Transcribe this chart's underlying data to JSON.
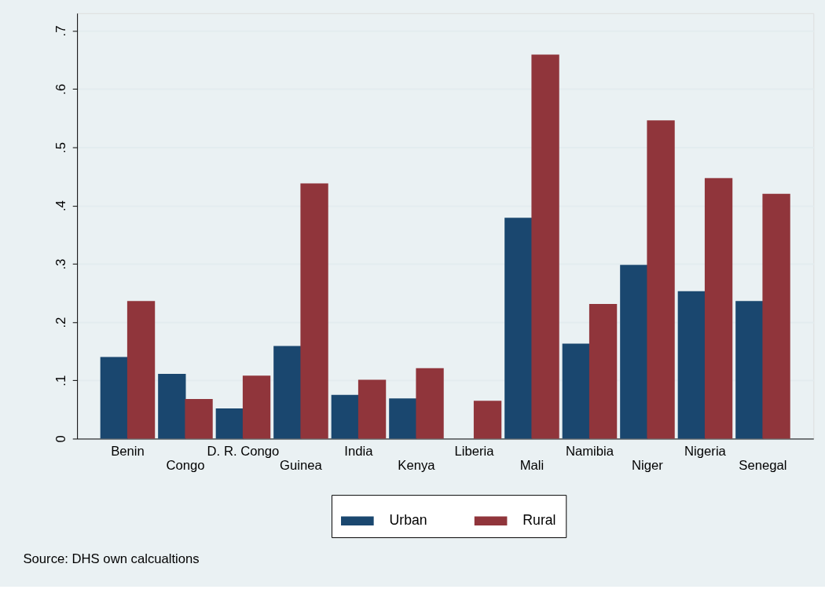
{
  "chart_data": {
    "type": "bar",
    "categories": [
      "Benin",
      "Congo",
      "D. R. Congo",
      "Guinea",
      "India",
      "Kenya",
      "Liberia",
      "Mali",
      "Namibia",
      "Niger",
      "Nigeria",
      "Senegal"
    ],
    "series": [
      {
        "name": "Urban",
        "color": "#1a476f",
        "values": [
          0.14,
          0.111,
          0.052,
          0.159,
          0.075,
          0.069,
          null,
          0.379,
          0.163,
          0.298,
          0.253,
          0.236
        ]
      },
      {
        "name": "Rural",
        "color": "#90353b",
        "values": [
          0.236,
          0.068,
          0.108,
          0.438,
          0.101,
          0.121,
          0.065,
          0.659,
          0.231,
          0.546,
          0.447,
          0.42
        ]
      }
    ],
    "ylim": [
      0,
      0.73
    ],
    "yticks": [
      0,
      {
        "value": 0.1,
        "label": ".1"
      },
      {
        "value": 0.2,
        "label": ".2"
      },
      {
        "value": 0.3,
        "label": ".3"
      },
      {
        "value": 0.4,
        "label": ".4"
      },
      {
        "value": 0.5,
        "label": ".5"
      },
      {
        "value": 0.6,
        "label": ".6"
      },
      {
        "value": 0.7,
        "label": ".7"
      }
    ],
    "grid": "y",
    "legend": "bottom",
    "annotations": [
      "Source: DHS own calcualtions"
    ]
  }
}
